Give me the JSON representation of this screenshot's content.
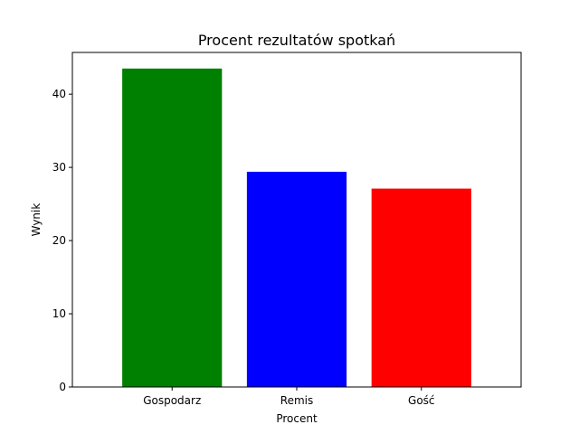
{
  "chart_data": {
    "type": "bar",
    "title": "Procent rezultatów spotkań",
    "xlabel": "Procent",
    "ylabel": "Wynik",
    "categories": [
      "Gospodarz",
      "Remis",
      "Gość"
    ],
    "values": [
      43.5,
      29.4,
      27.1
    ],
    "colors": [
      "#008000",
      "#0000ff",
      "#ff0000"
    ],
    "ylim": [
      0,
      45.7
    ],
    "yticks": [
      0,
      10,
      20,
      30,
      40
    ],
    "grid": false,
    "legend": "none"
  }
}
